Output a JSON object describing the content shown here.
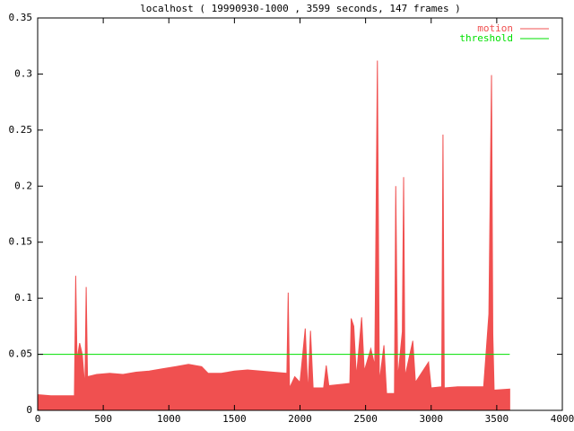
{
  "chart_data": {
    "type": "line",
    "title": "localhost ( 19990930-1000 , 3599 seconds, 147 frames )",
    "xlim": [
      0,
      4000
    ],
    "xticks": [
      0,
      500,
      1000,
      1500,
      2000,
      2500,
      3000,
      3500,
      4000
    ],
    "ylim": [
      0,
      0.35
    ],
    "yticks": [
      0,
      0.05,
      0.1,
      0.15,
      0.2,
      0.25,
      0.3,
      0.35
    ],
    "grid": false,
    "legend": "top-right",
    "series": [
      {
        "name": "motion",
        "color": "#f05050",
        "fill": true,
        "x": [
          0,
          100,
          200,
          280,
          290,
          300,
          320,
          340,
          360,
          370,
          380,
          450,
          550,
          650,
          750,
          850,
          950,
          1050,
          1150,
          1250,
          1300,
          1400,
          1500,
          1600,
          1700,
          1800,
          1900,
          1910,
          1920,
          1960,
          2000,
          2040,
          2060,
          2080,
          2100,
          2180,
          2200,
          2220,
          2300,
          2380,
          2390,
          2410,
          2430,
          2470,
          2490,
          2540,
          2570,
          2590,
          2605,
          2640,
          2660,
          2720,
          2730,
          2745,
          2780,
          2790,
          2800,
          2860,
          2880,
          2980,
          3000,
          3080,
          3090,
          3100,
          3200,
          3300,
          3400,
          3440,
          3460,
          3470,
          3480,
          3599
        ],
        "values": [
          0.014,
          0.013,
          0.013,
          0.013,
          0.12,
          0.045,
          0.06,
          0.05,
          0.02,
          0.11,
          0.03,
          0.032,
          0.033,
          0.032,
          0.034,
          0.035,
          0.037,
          0.039,
          0.041,
          0.039,
          0.033,
          0.033,
          0.035,
          0.036,
          0.035,
          0.034,
          0.033,
          0.105,
          0.02,
          0.03,
          0.025,
          0.073,
          0.015,
          0.071,
          0.02,
          0.02,
          0.04,
          0.022,
          0.023,
          0.024,
          0.082,
          0.075,
          0.03,
          0.083,
          0.035,
          0.055,
          0.04,
          0.312,
          0.025,
          0.058,
          0.015,
          0.015,
          0.2,
          0.028,
          0.07,
          0.208,
          0.03,
          0.062,
          0.025,
          0.043,
          0.02,
          0.021,
          0.246,
          0.02,
          0.021,
          0.021,
          0.021,
          0.086,
          0.299,
          0.068,
          0.018,
          0.019
        ]
      },
      {
        "name": "threshold",
        "color": "#00e000",
        "fill": false,
        "x": [
          0,
          3599
        ],
        "values": [
          0.05,
          0.05
        ]
      }
    ]
  }
}
